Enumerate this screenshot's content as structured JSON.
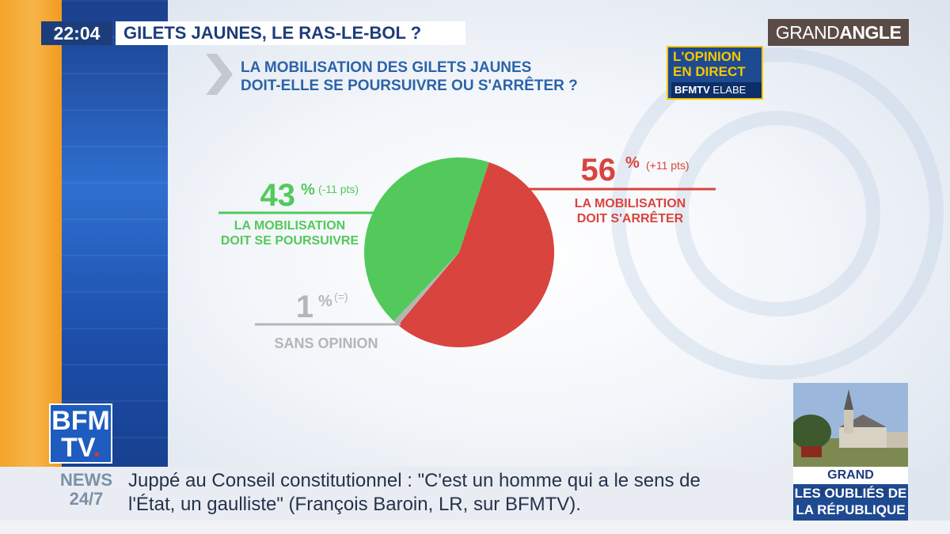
{
  "broadcast": {
    "time": "22:04",
    "headline": "GILETS JAUNES, LE RAS-LE-BOL ?",
    "program_logo_light": "GRAND",
    "program_logo_bold": "ANGLE",
    "channel_logo_line1": "BFM",
    "channel_logo_line2": "TV",
    "channel_logo_dot": "."
  },
  "opinion_badge": {
    "line1": "L'OPINION",
    "line2": "EN DIRECT",
    "brand_bold": "BFMTV",
    "brand_light": "ELABE"
  },
  "poll": {
    "question_line1": "LA MOBILISATION DES GILETS JAUNES",
    "question_line2": "DOIT-ELLE SE POURSUIVRE OU S'ARRÊTER ?"
  },
  "chart_data": {
    "type": "pie",
    "title": "LA MOBILISATION DES GILETS JAUNES DOIT-ELLE SE POURSUIVRE OU S'ARRÊTER ?",
    "unit": "%",
    "slices": [
      {
        "label_line1": "LA MOBILISATION",
        "label_line2": "DOIT S'ARRÊTER",
        "value": 56,
        "change": "(+11 pts)",
        "color": "#d9443e"
      },
      {
        "label_line1": "SANS OPINION",
        "label_line2": "",
        "value": 1,
        "change": "(=)",
        "color": "#b5b5b5"
      },
      {
        "label_line1": "LA MOBILISATION",
        "label_line2": "DOIT SE POURSUIVRE",
        "value": 43,
        "change": "(-11 pts)",
        "color": "#52c95a"
      }
    ]
  },
  "ticker": {
    "news_line1": "NEWS",
    "news_line2": "24/7",
    "text_line1": "Juppé au Conseil constitutionnel : \"C'est un homme qui a le sens de",
    "text_line2": "l'État, un gaulliste\" (François Baroin, LR, sur BFMTV)."
  },
  "reportage": {
    "label": "GRAND REPORTAGE",
    "title_line1": "LES OUBLIÉS DE",
    "title_line2": "LA RÉPUBLIQUE"
  },
  "colors": {
    "green": "#52c95a",
    "red": "#d9443e",
    "grey": "#b5b5b5",
    "navy": "#1d3d7a",
    "question_blue": "#2c63a8"
  }
}
